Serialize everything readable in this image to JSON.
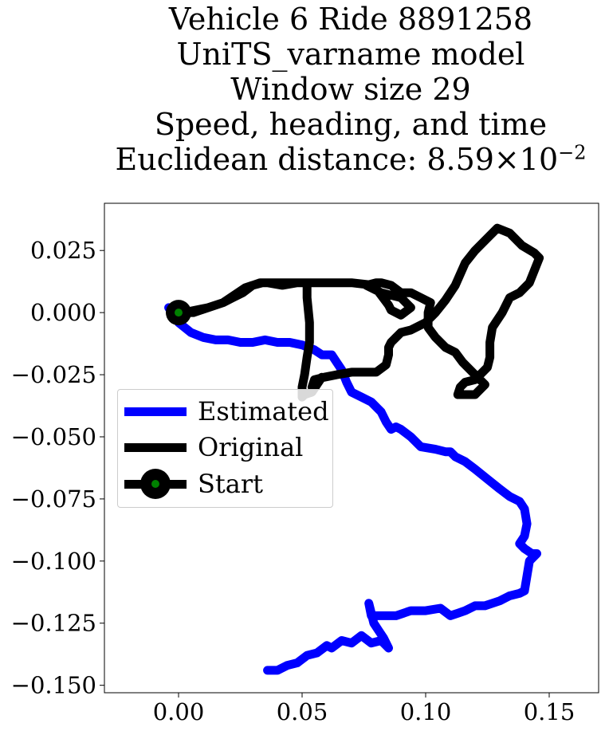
{
  "title": {
    "line1": "Vehicle 6 Ride 8891258",
    "line2": "UniTS_varname model",
    "line3": "Window size 29",
    "line4": "Speed, heading, and time",
    "line5_prefix": "Euclidean distance: 8.59×10",
    "line5_exp": "−2"
  },
  "chart_data": {
    "type": "line",
    "xlim": [
      -0.03,
      0.17
    ],
    "ylim": [
      -0.153,
      0.044
    ],
    "xticks": [
      0.0,
      0.05,
      0.1,
      0.15
    ],
    "xtick_labels": [
      "0.00",
      "0.05",
      "0.10",
      "0.15"
    ],
    "yticks": [
      0.025,
      0.0,
      -0.025,
      -0.05,
      -0.075,
      -0.1,
      -0.125,
      -0.15
    ],
    "ytick_labels": [
      "0.025",
      "0.000",
      "−0.025",
      "−0.050",
      "−0.075",
      "−0.100",
      "−0.125",
      "−0.150"
    ],
    "grid": false,
    "legend_position": "center-left",
    "series": [
      {
        "name": "Estimated",
        "color": "#0000ff",
        "x": [
          -0.004,
          0.0,
          0.005,
          0.01,
          0.015,
          0.02,
          0.025,
          0.03,
          0.035,
          0.04,
          0.045,
          0.05,
          0.055,
          0.058,
          0.062,
          0.064,
          0.066,
          0.068,
          0.07,
          0.074,
          0.078,
          0.082,
          0.084,
          0.086,
          0.088,
          0.09,
          0.094,
          0.098,
          0.104,
          0.108,
          0.11,
          0.112,
          0.116,
          0.12,
          0.125,
          0.13,
          0.134,
          0.138,
          0.14,
          0.141,
          0.14,
          0.138,
          0.14,
          0.143,
          0.145,
          0.142,
          0.141,
          0.14,
          0.138,
          0.134,
          0.13,
          0.127,
          0.124,
          0.12,
          0.116,
          0.113,
          0.11,
          0.106,
          0.1,
          0.094,
          0.088,
          0.082,
          0.078,
          0.077,
          0.079,
          0.081,
          0.083,
          0.085,
          0.082,
          0.078,
          0.074,
          0.07,
          0.066,
          0.062,
          0.06,
          0.056,
          0.052,
          0.048,
          0.044,
          0.04,
          0.036
        ],
        "y": [
          0.002,
          -0.004,
          -0.008,
          -0.01,
          -0.011,
          -0.011,
          -0.012,
          -0.012,
          -0.011,
          -0.012,
          -0.012,
          -0.013,
          -0.015,
          -0.017,
          -0.017,
          -0.02,
          -0.023,
          -0.028,
          -0.032,
          -0.034,
          -0.036,
          -0.04,
          -0.044,
          -0.047,
          -0.046,
          -0.047,
          -0.05,
          -0.054,
          -0.055,
          -0.056,
          -0.056,
          -0.058,
          -0.06,
          -0.063,
          -0.067,
          -0.071,
          -0.074,
          -0.076,
          -0.079,
          -0.085,
          -0.09,
          -0.093,
          -0.095,
          -0.097,
          -0.097,
          -0.1,
          -0.106,
          -0.112,
          -0.113,
          -0.114,
          -0.116,
          -0.117,
          -0.118,
          -0.118,
          -0.12,
          -0.121,
          -0.122,
          -0.119,
          -0.12,
          -0.12,
          -0.122,
          -0.122,
          -0.122,
          -0.117,
          -0.125,
          -0.128,
          -0.131,
          -0.135,
          -0.132,
          -0.133,
          -0.13,
          -0.133,
          -0.132,
          -0.135,
          -0.134,
          -0.137,
          -0.138,
          -0.141,
          -0.142,
          -0.144,
          -0.144
        ]
      },
      {
        "name": "Original",
        "color": "#000000",
        "x": [
          0.0,
          0.006,
          0.012,
          0.018,
          0.022,
          0.026,
          0.03,
          0.033,
          0.036,
          0.042,
          0.048,
          0.052,
          0.052,
          0.053,
          0.053,
          0.052,
          0.051,
          0.05,
          0.05,
          0.051,
          0.054,
          0.056,
          0.058,
          0.056,
          0.054,
          0.055,
          0.059,
          0.064,
          0.07,
          0.075,
          0.08,
          0.084,
          0.085,
          0.085,
          0.086,
          0.088,
          0.09,
          0.094,
          0.1,
          0.104,
          0.108,
          0.112,
          0.116,
          0.12,
          0.125,
          0.129,
          0.134,
          0.139,
          0.144,
          0.146,
          0.142,
          0.138,
          0.134,
          0.131,
          0.127,
          0.126,
          0.126,
          0.125,
          0.122,
          0.12,
          0.116,
          0.114,
          0.113,
          0.12,
          0.124,
          0.12,
          0.115,
          0.112,
          0.108,
          0.104,
          0.101,
          0.101,
          0.102,
          0.098,
          0.094,
          0.09,
          0.086,
          0.082,
          0.08,
          0.076,
          0.082,
          0.09,
          0.094,
          0.09,
          0.086,
          0.085,
          0.079,
          0.07,
          0.064,
          0.058,
          0.053,
          0.048,
          0.04,
          0.034,
          0.03,
          0.027,
          0.024,
          0.018,
          0.012,
          0.007,
          0.002,
          0.0
        ],
        "y": [
          0.0,
          0.0,
          0.002,
          0.004,
          0.006,
          0.008,
          0.011,
          0.012,
          0.012,
          0.011,
          0.012,
          0.012,
          0.006,
          -0.004,
          -0.012,
          -0.018,
          -0.025,
          -0.03,
          -0.034,
          -0.033,
          -0.032,
          -0.029,
          -0.026,
          -0.028,
          -0.03,
          -0.027,
          -0.026,
          -0.025,
          -0.024,
          -0.024,
          -0.024,
          -0.021,
          -0.017,
          -0.014,
          -0.012,
          -0.01,
          -0.008,
          -0.007,
          -0.004,
          0.0,
          0.005,
          0.011,
          0.02,
          0.025,
          0.03,
          0.034,
          0.032,
          0.027,
          0.024,
          0.022,
          0.012,
          0.008,
          0.006,
          0.0,
          -0.006,
          -0.012,
          -0.018,
          -0.022,
          -0.025,
          -0.027,
          -0.028,
          -0.03,
          -0.033,
          -0.033,
          -0.029,
          -0.025,
          -0.02,
          -0.016,
          -0.014,
          -0.01,
          -0.006,
          0.0,
          0.004,
          0.006,
          0.008,
          0.008,
          0.011,
          0.012,
          0.012,
          0.011,
          0.008,
          0.006,
          0.002,
          -0.001,
          0.001,
          0.003,
          0.011,
          0.012,
          0.012,
          0.012,
          0.012,
          0.012,
          0.012,
          0.012,
          0.011,
          0.01,
          0.008,
          0.004,
          0.002,
          0.001,
          0.0,
          0.0
        ]
      }
    ],
    "start_point": {
      "name": "Start",
      "x": 0.0,
      "y": 0.0,
      "edge_color": "#000000",
      "face_color": "#008000"
    }
  },
  "legend": {
    "estimated": "Estimated",
    "original": "Original",
    "start": "Start",
    "estimated_color": "#0000ff",
    "original_color": "#000000"
  }
}
